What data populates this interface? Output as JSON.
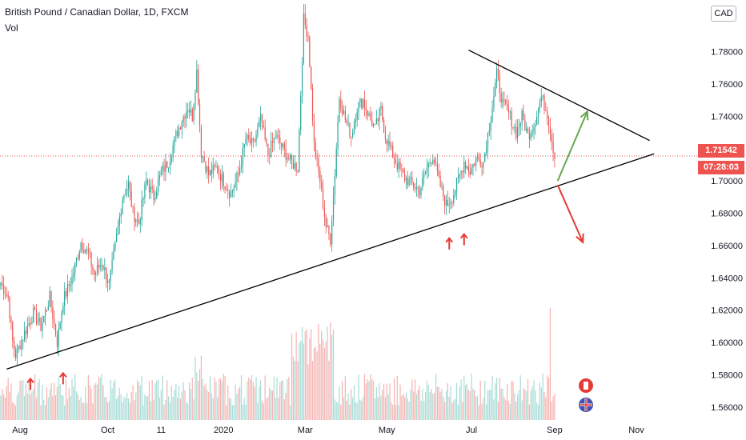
{
  "header": {
    "title": "British Pound / Canadian Dollar, 1D, FXCM",
    "indicator": "Vol",
    "currency_button": "CAD"
  },
  "last_price": "1.71542",
  "countdown": "07:28:03",
  "colors": {
    "up": "#26a69a",
    "down": "#ef5350",
    "vol_up": "#a8dcd6",
    "vol_down": "#f5b3b1",
    "trendline": "#000000",
    "arrow_up": "#6aa84f",
    "arrow_down": "#e53935",
    "marker": "#e53935",
    "price_line": "#ef5350"
  },
  "chart_data": {
    "type": "candlestick",
    "title": "British Pound / Canadian Dollar, 1D, FXCM",
    "yticks": [
      "1.78000",
      "1.76000",
      "1.74000",
      "1.72000",
      "1.70000",
      "1.68000",
      "1.66000",
      "1.64000",
      "1.62000",
      "1.60000",
      "1.58000",
      "1.56000"
    ],
    "yvalues": [
      1.78,
      1.76,
      1.74,
      1.72,
      1.7,
      1.68,
      1.66,
      1.64,
      1.62,
      1.6,
      1.58,
      1.56
    ],
    "ylim": [
      1.552,
      1.812
    ],
    "xticks": [
      "Aug",
      "Oct",
      "11",
      "2020",
      "Mar",
      "May",
      "Jul",
      "Sep",
      "Nov"
    ],
    "xtick_index": [
      13,
      72,
      108,
      150,
      205,
      260,
      317,
      373,
      428
    ],
    "n_bars": 470,
    "price_anchors": [
      [
        0,
        1.637
      ],
      [
        5,
        1.628
      ],
      [
        8,
        1.6
      ],
      [
        10,
        1.592
      ],
      [
        16,
        1.606
      ],
      [
        22,
        1.618
      ],
      [
        27,
        1.61
      ],
      [
        33,
        1.628
      ],
      [
        38,
        1.6
      ],
      [
        42,
        1.626
      ],
      [
        48,
        1.64
      ],
      [
        54,
        1.662
      ],
      [
        59,
        1.655
      ],
      [
        63,
        1.642
      ],
      [
        68,
        1.65
      ],
      [
        73,
        1.636
      ],
      [
        78,
        1.665
      ],
      [
        82,
        1.69
      ],
      [
        86,
        1.698
      ],
      [
        89,
        1.68
      ],
      [
        93,
        1.674
      ],
      [
        98,
        1.7
      ],
      [
        103,
        1.69
      ],
      [
        108,
        1.705
      ],
      [
        113,
        1.712
      ],
      [
        118,
        1.728
      ],
      [
        122,
        1.738
      ],
      [
        126,
        1.746
      ],
      [
        129,
        1.74
      ],
      [
        132,
        1.768
      ],
      [
        135,
        1.718
      ],
      [
        140,
        1.704
      ],
      [
        145,
        1.708
      ],
      [
        150,
        1.7
      ],
      [
        155,
        1.692
      ],
      [
        160,
        1.704
      ],
      [
        165,
        1.726
      ],
      [
        170,
        1.722
      ],
      [
        175,
        1.738
      ],
      [
        180,
        1.716
      ],
      [
        185,
        1.728
      ],
      [
        190,
        1.72
      ],
      [
        195,
        1.712
      ],
      [
        200,
        1.708
      ],
      [
        204,
        1.8
      ],
      [
        207,
        1.79
      ],
      [
        211,
        1.722
      ],
      [
        215,
        1.7
      ],
      [
        219,
        1.672
      ],
      [
        222,
        1.664
      ],
      [
        225,
        1.705
      ],
      [
        228,
        1.752
      ],
      [
        232,
        1.738
      ],
      [
        236,
        1.728
      ],
      [
        240,
        1.746
      ],
      [
        244,
        1.75
      ],
      [
        248,
        1.74
      ],
      [
        252,
        1.732
      ],
      [
        256,
        1.744
      ],
      [
        259,
        1.728
      ],
      [
        263,
        1.718
      ],
      [
        267,
        1.71
      ],
      [
        272,
        1.702
      ],
      [
        277,
        1.698
      ],
      [
        282,
        1.694
      ],
      [
        287,
        1.708
      ],
      [
        291,
        1.716
      ],
      [
        295,
        1.7
      ],
      [
        300,
        1.685
      ],
      [
        304,
        1.69
      ],
      [
        308,
        1.7
      ],
      [
        312,
        1.712
      ],
      [
        316,
        1.706
      ],
      [
        320,
        1.714
      ],
      [
        325,
        1.712
      ],
      [
        330,
        1.74
      ],
      [
        334,
        1.766
      ],
      [
        338,
        1.748
      ],
      [
        342,
        1.742
      ],
      [
        347,
        1.73
      ],
      [
        351,
        1.74
      ],
      [
        355,
        1.728
      ],
      [
        359,
        1.735
      ],
      [
        364,
        1.752
      ],
      [
        368,
        1.742
      ],
      [
        371,
        1.726
      ],
      [
        373,
        1.715
      ]
    ],
    "trendlines": [
      {
        "from_index": 4,
        "from_price": 1.5835,
        "to_index": 440,
        "to_price": 1.7168
      },
      {
        "from_index": 315,
        "from_price": 1.781,
        "to_index": 437,
        "to_price": 1.725
      }
    ],
    "arrows": [
      {
        "kind": "up",
        "from_index": 375,
        "from_price": 1.7,
        "to_index": 395,
        "to_price": 1.743
      },
      {
        "kind": "down",
        "from_index": 375,
        "from_price": 1.6975,
        "to_index": 392,
        "to_price": 1.662
      }
    ],
    "markers_index": [
      20,
      42,
      302,
      312
    ],
    "markers_price": [
      1.5815,
      1.585,
      1.6685,
      1.671
    ]
  }
}
